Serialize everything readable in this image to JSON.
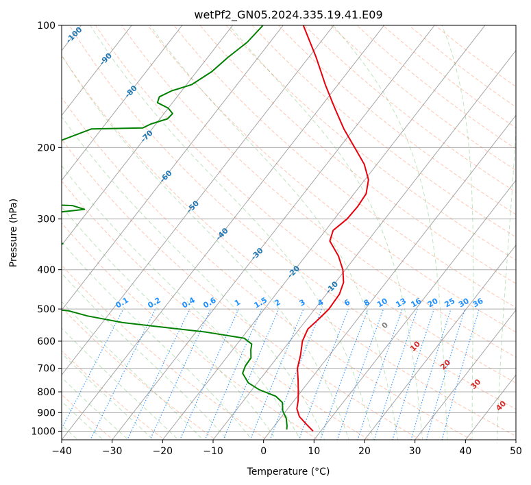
{
  "chart_data": {
    "type": "line",
    "subtype": "skew-t log-p diagram",
    "title": "wetPf2_GN05.2024.335.19.41.E09",
    "xlabel": "Temperature (°C)",
    "ylabel": "Pressure (hPa)",
    "xlim": [
      -40,
      50
    ],
    "ylim": [
      1050,
      100
    ],
    "y_scale": "log",
    "x_ticks": [
      -40,
      -30,
      -20,
      -10,
      0,
      10,
      20,
      30,
      40,
      50
    ],
    "y_ticks": [
      100,
      200,
      300,
      400,
      500,
      600,
      700,
      800,
      900,
      1000
    ],
    "isotherm_labels": [
      "-100",
      "-90",
      "-80",
      "-70",
      "-60",
      "-50",
      "-40",
      "-30",
      "-20",
      "-10"
    ],
    "mixing_ratio_labels": [
      "0.1",
      "0.2",
      "0.4",
      "0.6",
      "1",
      "1.5",
      "2",
      "3",
      "4",
      "6",
      "8",
      "10",
      "13",
      "16",
      "20",
      "25",
      "30",
      "36"
    ],
    "moist_adiabat_labels": [
      "0",
      "10",
      "20",
      "30",
      "40"
    ],
    "colors": {
      "temperature": "#e8000b",
      "dewpoint": "#008000",
      "isotherm_label": "#1f77b4",
      "mixing_ratio": "#1e90ff",
      "dry_adiabat": "#ff7f50",
      "moist_adiabat": "#2ca02c",
      "moist_label": "#d62728"
    },
    "grid": true,
    "legend": "none",
    "series": [
      {
        "points": [
          {
            "p": 1000,
            "t": 8.5
          },
          {
            "p": 960,
            "t": 6.0
          },
          {
            "p": 920,
            "t": 3.5
          },
          {
            "p": 880,
            "t": 1.8
          },
          {
            "p": 840,
            "t": 0.8
          },
          {
            "p": 800,
            "t": -0.5
          },
          {
            "p": 750,
            "t": -2.3
          },
          {
            "p": 700,
            "t": -4.3
          },
          {
            "p": 650,
            "t": -5.7
          },
          {
            "p": 600,
            "t": -7.5
          },
          {
            "p": 560,
            "t": -8.3
          },
          {
            "p": 530,
            "t": -7.7
          },
          {
            "p": 500,
            "t": -7.2
          },
          {
            "p": 460,
            "t": -7.4
          },
          {
            "p": 430,
            "t": -8.4
          },
          {
            "p": 400,
            "t": -10.5
          },
          {
            "p": 370,
            "t": -13.5
          },
          {
            "p": 340,
            "t": -17.5
          },
          {
            "p": 320,
            "t": -18.5
          },
          {
            "p": 300,
            "t": -17.5
          },
          {
            "p": 280,
            "t": -17.3
          },
          {
            "p": 260,
            "t": -17.6
          },
          {
            "p": 240,
            "t": -19.3
          },
          {
            "p": 220,
            "t": -22.5
          },
          {
            "p": 200,
            "t": -27.0
          },
          {
            "p": 180,
            "t": -32.0
          },
          {
            "p": 160,
            "t": -37.0
          },
          {
            "p": 140,
            "t": -42.5
          },
          {
            "p": 120,
            "t": -48.5
          },
          {
            "p": 100,
            "t": -56.0
          }
        ]
      },
      {
        "points": [
          {
            "p": 990,
            "t": 3.0
          },
          {
            "p": 970,
            "t": 2.5
          },
          {
            "p": 930,
            "t": 1.2
          },
          {
            "p": 890,
            "t": -0.7
          },
          {
            "p": 850,
            "t": -2.0
          },
          {
            "p": 820,
            "t": -4.3
          },
          {
            "p": 790,
            "t": -8.6
          },
          {
            "p": 760,
            "t": -11.8
          },
          {
            "p": 720,
            "t": -14.4
          },
          {
            "p": 690,
            "t": -15.0
          },
          {
            "p": 660,
            "t": -15.1
          },
          {
            "p": 630,
            "t": -16.4
          },
          {
            "p": 610,
            "t": -17.1
          },
          {
            "p": 590,
            "t": -19.5
          },
          {
            "p": 570,
            "t": -28.0
          },
          {
            "p": 540,
            "t": -46.0
          },
          {
            "p": 520,
            "t": -54.0
          },
          {
            "p": 505,
            "t": -58.5
          },
          {
            "p": 500,
            "t": -62.5
          },
          {
            "p": 362,
            "t": -100.0
          },
          {
            "p": 353,
            "t": -75.0
          },
          {
            "p": 345,
            "t": -70.0
          },
          {
            "p": 338,
            "t": -76.0
          },
          {
            "p": 330,
            "t": -100.0
          },
          {
            "p": 296,
            "t": -100.0
          },
          {
            "p": 289,
            "t": -76.0
          },
          {
            "p": 284,
            "t": -71.0
          },
          {
            "p": 278,
            "t": -74.0
          },
          {
            "p": 270,
            "t": -100.0
          },
          {
            "p": 230,
            "t": -100.0
          },
          {
            "p": 210,
            "t": -92.0
          },
          {
            "p": 180,
            "t": -82.0
          },
          {
            "p": 179,
            "t": -72.0
          },
          {
            "p": 175,
            "t": -71.0
          },
          {
            "p": 170,
            "t": -68.5
          },
          {
            "p": 165,
            "t": -68.3
          },
          {
            "p": 160,
            "t": -70.0
          },
          {
            "p": 155,
            "t": -73.0
          },
          {
            "p": 150,
            "t": -73.5
          },
          {
            "p": 145,
            "t": -72.0
          },
          {
            "p": 140,
            "t": -69.0
          },
          {
            "p": 130,
            "t": -67.0
          },
          {
            "p": 120,
            "t": -66.0
          },
          {
            "p": 110,
            "t": -64.5
          },
          {
            "p": 100,
            "t": -64.0
          }
        ],
        "breaks_after_index": [
          18,
          23,
          28
        ]
      }
    ]
  }
}
